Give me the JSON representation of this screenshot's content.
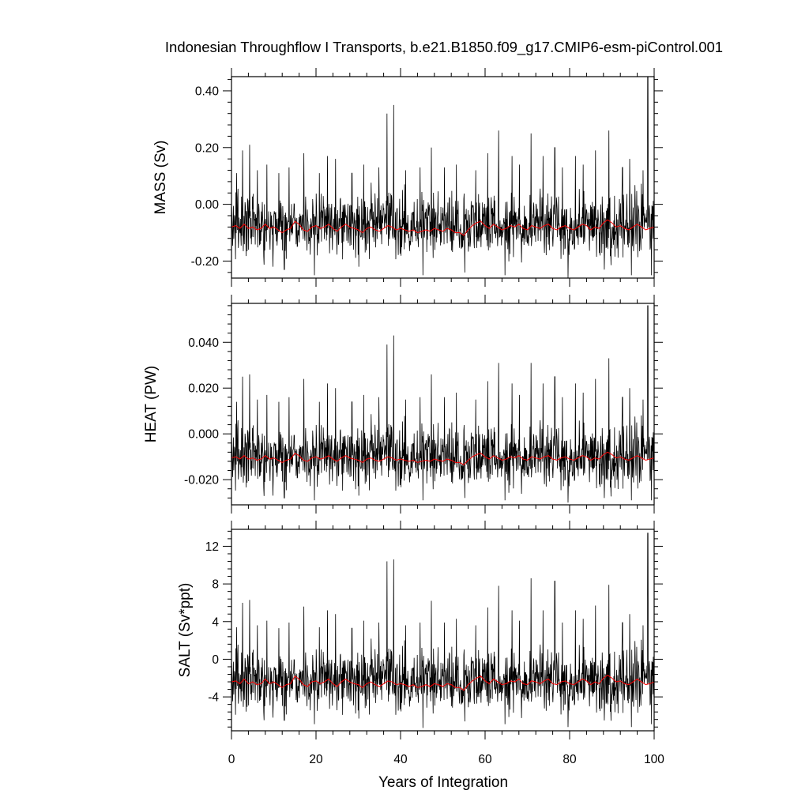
{
  "chart_data": {
    "type": "line",
    "title": "Indonesian Throughflow I Transports, b.e21.B1850.f09_g17.CMIP6-esm-piControl.001",
    "xlabel": "Years of Integration",
    "xlim": [
      0,
      100
    ],
    "xticks": [
      0,
      20,
      40,
      60,
      80,
      100
    ],
    "colors": {
      "monthly": "#000000",
      "running_mean": "#ff0000",
      "axes": "#000000"
    },
    "panels": [
      {
        "ylabel": "MASS (Sv)",
        "ylim": [
          -0.26,
          0.45
        ],
        "yticks": [
          -0.2,
          0.0,
          0.2,
          0.4
        ],
        "ytick_labels": [
          "-0.20",
          "0.00",
          "0.20",
          "0.40"
        ],
        "mean": -0.07,
        "noise": 0.055,
        "smooth_mean": [
          -0.08,
          -0.075,
          -0.085,
          -0.07,
          -0.085,
          -0.08,
          -0.09,
          -0.085,
          -0.07,
          -0.085,
          -0.08,
          -0.09,
          -0.1,
          -0.09,
          -0.085,
          -0.06,
          -0.07,
          -0.09,
          -0.095,
          -0.08,
          -0.075,
          -0.085,
          -0.08,
          -0.07,
          -0.085,
          -0.095,
          -0.08,
          -0.07,
          -0.08,
          -0.085,
          -0.09,
          -0.1,
          -0.085,
          -0.08,
          -0.09,
          -0.095,
          -0.085,
          -0.075,
          -0.08,
          -0.09,
          -0.085,
          -0.09,
          -0.095,
          -0.09,
          -0.1,
          -0.095,
          -0.09,
          -0.095,
          -0.085,
          -0.09,
          -0.095,
          -0.085,
          -0.09,
          -0.1,
          -0.1,
          -0.11,
          -0.09,
          -0.075,
          -0.065,
          -0.06,
          -0.075,
          -0.085,
          -0.07,
          -0.08,
          -0.09,
          -0.085,
          -0.075,
          -0.08,
          -0.07,
          -0.085,
          -0.09,
          -0.075,
          -0.08,
          -0.085,
          -0.075,
          -0.07,
          -0.085,
          -0.09,
          -0.08,
          -0.075,
          -0.085,
          -0.09,
          -0.08,
          -0.07,
          -0.075,
          -0.09,
          -0.08,
          -0.085,
          -0.065,
          -0.055,
          -0.065,
          -0.08,
          -0.075,
          -0.085,
          -0.09,
          -0.08,
          -0.07,
          -0.08,
          -0.09,
          -0.085,
          -0.08
        ],
        "peaks": [
          [
            1.2,
            0.11
          ],
          [
            2.6,
            0.19
          ],
          [
            4.3,
            0.21
          ],
          [
            6.1,
            0.12
          ],
          [
            8.4,
            0.14
          ],
          [
            11.2,
            0.11
          ],
          [
            13.6,
            0.13
          ],
          [
            17.1,
            0.18
          ],
          [
            20.8,
            0.11
          ],
          [
            22.7,
            0.17
          ],
          [
            24.6,
            0.16
          ],
          [
            28.5,
            0.11
          ],
          [
            31.3,
            0.14
          ],
          [
            34.9,
            0.13
          ],
          [
            36.8,
            0.32
          ],
          [
            38.4,
            0.35
          ],
          [
            41.2,
            0.12
          ],
          [
            44.6,
            0.13
          ],
          [
            47.3,
            0.2
          ],
          [
            50.4,
            0.13
          ],
          [
            53.2,
            0.14
          ],
          [
            57.8,
            0.12
          ],
          [
            60.6,
            0.18
          ],
          [
            63.2,
            0.26
          ],
          [
            66.4,
            0.17
          ],
          [
            68.1,
            0.14
          ],
          [
            70.9,
            0.25
          ],
          [
            73.7,
            0.17
          ],
          [
            76.5,
            0.2
          ],
          [
            78.3,
            0.13
          ],
          [
            81.4,
            0.17
          ],
          [
            83.2,
            0.14
          ],
          [
            86.1,
            0.19
          ],
          [
            89.3,
            0.26
          ],
          [
            92.5,
            0.13
          ],
          [
            94.2,
            0.16
          ],
          [
            97.4,
            0.12
          ],
          [
            98.5,
            0.45
          ]
        ],
        "troughs": [
          [
            9.8,
            -0.22
          ],
          [
            12.5,
            -0.23
          ],
          [
            19.6,
            -0.25
          ],
          [
            30.1,
            -0.22
          ],
          [
            45.3,
            -0.25
          ],
          [
            55.2,
            -0.24
          ],
          [
            64.7,
            -0.25
          ],
          [
            79.6,
            -0.26
          ],
          [
            88.2,
            -0.23
          ],
          [
            94.6,
            -0.25
          ],
          [
            99.4,
            -0.25
          ]
        ]
      },
      {
        "ylabel": "HEAT (PW)",
        "ylim": [
          -0.031,
          0.057
        ],
        "yticks": [
          -0.02,
          0.0,
          0.02,
          0.04
        ],
        "ytick_labels": [
          "-0.020",
          "0.000",
          "0.020",
          "0.040"
        ],
        "mean": -0.0095,
        "noise": 0.0068,
        "smooth_mean": [
          -0.0105,
          -0.01,
          -0.011,
          -0.0095,
          -0.011,
          -0.0105,
          -0.0115,
          -0.011,
          -0.0095,
          -0.011,
          -0.0105,
          -0.0115,
          -0.0125,
          -0.0115,
          -0.011,
          -0.0085,
          -0.0095,
          -0.0115,
          -0.012,
          -0.0105,
          -0.01,
          -0.011,
          -0.0105,
          -0.0095,
          -0.011,
          -0.012,
          -0.0105,
          -0.0095,
          -0.0105,
          -0.011,
          -0.0115,
          -0.0125,
          -0.011,
          -0.0105,
          -0.0115,
          -0.012,
          -0.011,
          -0.01,
          -0.0105,
          -0.0115,
          -0.011,
          -0.0115,
          -0.012,
          -0.0115,
          -0.0125,
          -0.012,
          -0.0115,
          -0.012,
          -0.011,
          -0.0115,
          -0.012,
          -0.011,
          -0.0115,
          -0.0125,
          -0.0125,
          -0.0135,
          -0.0115,
          -0.01,
          -0.009,
          -0.0085,
          -0.01,
          -0.011,
          -0.0095,
          -0.0105,
          -0.0115,
          -0.011,
          -0.01,
          -0.0105,
          -0.0095,
          -0.011,
          -0.0115,
          -0.01,
          -0.0105,
          -0.011,
          -0.01,
          -0.0095,
          -0.011,
          -0.0115,
          -0.0105,
          -0.01,
          -0.011,
          -0.0115,
          -0.0105,
          -0.0095,
          -0.01,
          -0.0115,
          -0.0105,
          -0.011,
          -0.009,
          -0.008,
          -0.009,
          -0.0105,
          -0.01,
          -0.011,
          -0.0115,
          -0.0105,
          -0.0095,
          -0.0105,
          -0.0115,
          -0.011,
          -0.0105
        ],
        "peaks": [
          [
            1.2,
            0.014
          ],
          [
            2.6,
            0.025
          ],
          [
            4.3,
            0.026
          ],
          [
            6.1,
            0.015
          ],
          [
            8.4,
            0.017
          ],
          [
            11.2,
            0.014
          ],
          [
            13.6,
            0.016
          ],
          [
            17.1,
            0.024
          ],
          [
            20.8,
            0.014
          ],
          [
            22.7,
            0.022
          ],
          [
            24.6,
            0.02
          ],
          [
            28.5,
            0.014
          ],
          [
            31.3,
            0.017
          ],
          [
            34.9,
            0.016
          ],
          [
            36.8,
            0.039
          ],
          [
            38.4,
            0.043
          ],
          [
            41.2,
            0.015
          ],
          [
            44.6,
            0.016
          ],
          [
            47.3,
            0.026
          ],
          [
            50.4,
            0.016
          ],
          [
            53.2,
            0.018
          ],
          [
            57.8,
            0.015
          ],
          [
            60.6,
            0.023
          ],
          [
            63.2,
            0.031
          ],
          [
            66.4,
            0.022
          ],
          [
            68.1,
            0.017
          ],
          [
            70.9,
            0.031
          ],
          [
            73.7,
            0.022
          ],
          [
            76.5,
            0.025
          ],
          [
            78.3,
            0.016
          ],
          [
            81.4,
            0.022
          ],
          [
            83.2,
            0.018
          ],
          [
            86.1,
            0.024
          ],
          [
            89.3,
            0.033
          ],
          [
            92.5,
            0.016
          ],
          [
            94.2,
            0.02
          ],
          [
            97.4,
            0.015
          ],
          [
            98.5,
            0.056
          ]
        ],
        "troughs": [
          [
            9.8,
            -0.027
          ],
          [
            12.5,
            -0.028
          ],
          [
            19.6,
            -0.029
          ],
          [
            30.1,
            -0.027
          ],
          [
            45.3,
            -0.029
          ],
          [
            55.2,
            -0.028
          ],
          [
            64.7,
            -0.029
          ],
          [
            79.6,
            -0.03
          ],
          [
            88.2,
            -0.028
          ],
          [
            94.6,
            -0.029
          ],
          [
            99.4,
            -0.029
          ]
        ]
      },
      {
        "ylabel": "SALT (Sv*ppt)",
        "ylim": [
          -7.6,
          13.8
        ],
        "yticks": [
          -4,
          0,
          4,
          8,
          12
        ],
        "ytick_labels": [
          "-4",
          "0",
          "4",
          "8",
          "12"
        ],
        "mean": -2.2,
        "noise": 1.65,
        "smooth_mean": [
          -2.4,
          -2.3,
          -2.6,
          -2.1,
          -2.6,
          -2.4,
          -2.7,
          -2.6,
          -2.1,
          -2.6,
          -2.4,
          -2.7,
          -3.0,
          -2.7,
          -2.6,
          -1.8,
          -2.1,
          -2.7,
          -2.9,
          -2.4,
          -2.3,
          -2.6,
          -2.4,
          -2.1,
          -2.6,
          -2.9,
          -2.4,
          -2.1,
          -2.4,
          -2.6,
          -2.7,
          -3.0,
          -2.6,
          -2.4,
          -2.7,
          -2.9,
          -2.6,
          -2.3,
          -2.4,
          -2.7,
          -2.6,
          -2.7,
          -2.9,
          -2.7,
          -3.0,
          -2.9,
          -2.7,
          -2.9,
          -2.6,
          -2.7,
          -2.9,
          -2.6,
          -2.7,
          -3.0,
          -3.0,
          -3.3,
          -2.7,
          -2.3,
          -2.0,
          -1.8,
          -2.3,
          -2.6,
          -2.1,
          -2.4,
          -2.7,
          -2.6,
          -2.3,
          -2.4,
          -2.1,
          -2.6,
          -2.7,
          -2.3,
          -2.4,
          -2.6,
          -2.3,
          -2.1,
          -2.6,
          -2.7,
          -2.4,
          -2.3,
          -2.6,
          -2.7,
          -2.4,
          -2.1,
          -2.3,
          -2.7,
          -2.4,
          -2.6,
          -2.0,
          -1.7,
          -2.0,
          -2.4,
          -2.3,
          -2.6,
          -2.7,
          -2.4,
          -2.1,
          -2.4,
          -2.7,
          -2.6,
          -2.4
        ],
        "peaks": [
          [
            1.2,
            3.4
          ],
          [
            2.6,
            6.0
          ],
          [
            4.3,
            6.3
          ],
          [
            6.1,
            3.6
          ],
          [
            8.4,
            4.1
          ],
          [
            11.2,
            3.3
          ],
          [
            13.6,
            3.9
          ],
          [
            17.1,
            5.6
          ],
          [
            20.8,
            3.4
          ],
          [
            22.7,
            5.2
          ],
          [
            24.6,
            4.8
          ],
          [
            28.5,
            3.3
          ],
          [
            31.3,
            4.1
          ],
          [
            34.9,
            3.9
          ],
          [
            36.8,
            10.4
          ],
          [
            38.4,
            10.6
          ],
          [
            41.2,
            3.6
          ],
          [
            44.6,
            3.9
          ],
          [
            47.3,
            6.2
          ],
          [
            50.4,
            3.9
          ],
          [
            53.2,
            4.3
          ],
          [
            57.8,
            3.6
          ],
          [
            60.6,
            5.5
          ],
          [
            63.2,
            7.8
          ],
          [
            66.4,
            5.2
          ],
          [
            68.1,
            4.1
          ],
          [
            70.9,
            8.6
          ],
          [
            73.7,
            5.2
          ],
          [
            76.5,
            8.3
          ],
          [
            78.3,
            3.9
          ],
          [
            81.4,
            5.2
          ],
          [
            83.2,
            4.3
          ],
          [
            86.1,
            5.7
          ],
          [
            89.3,
            7.9
          ],
          [
            92.5,
            3.9
          ],
          [
            94.2,
            4.8
          ],
          [
            97.4,
            3.6
          ],
          [
            98.5,
            13.4
          ]
        ],
        "troughs": [
          [
            9.8,
            -6.2
          ],
          [
            12.5,
            -6.5
          ],
          [
            19.6,
            -6.9
          ],
          [
            30.1,
            -6.3
          ],
          [
            45.3,
            -7.3
          ],
          [
            55.2,
            -6.6
          ],
          [
            64.7,
            -6.9
          ],
          [
            79.6,
            -7.2
          ],
          [
            88.2,
            -6.5
          ],
          [
            94.6,
            -7.2
          ],
          [
            99.4,
            -6.9
          ]
        ]
      }
    ]
  }
}
